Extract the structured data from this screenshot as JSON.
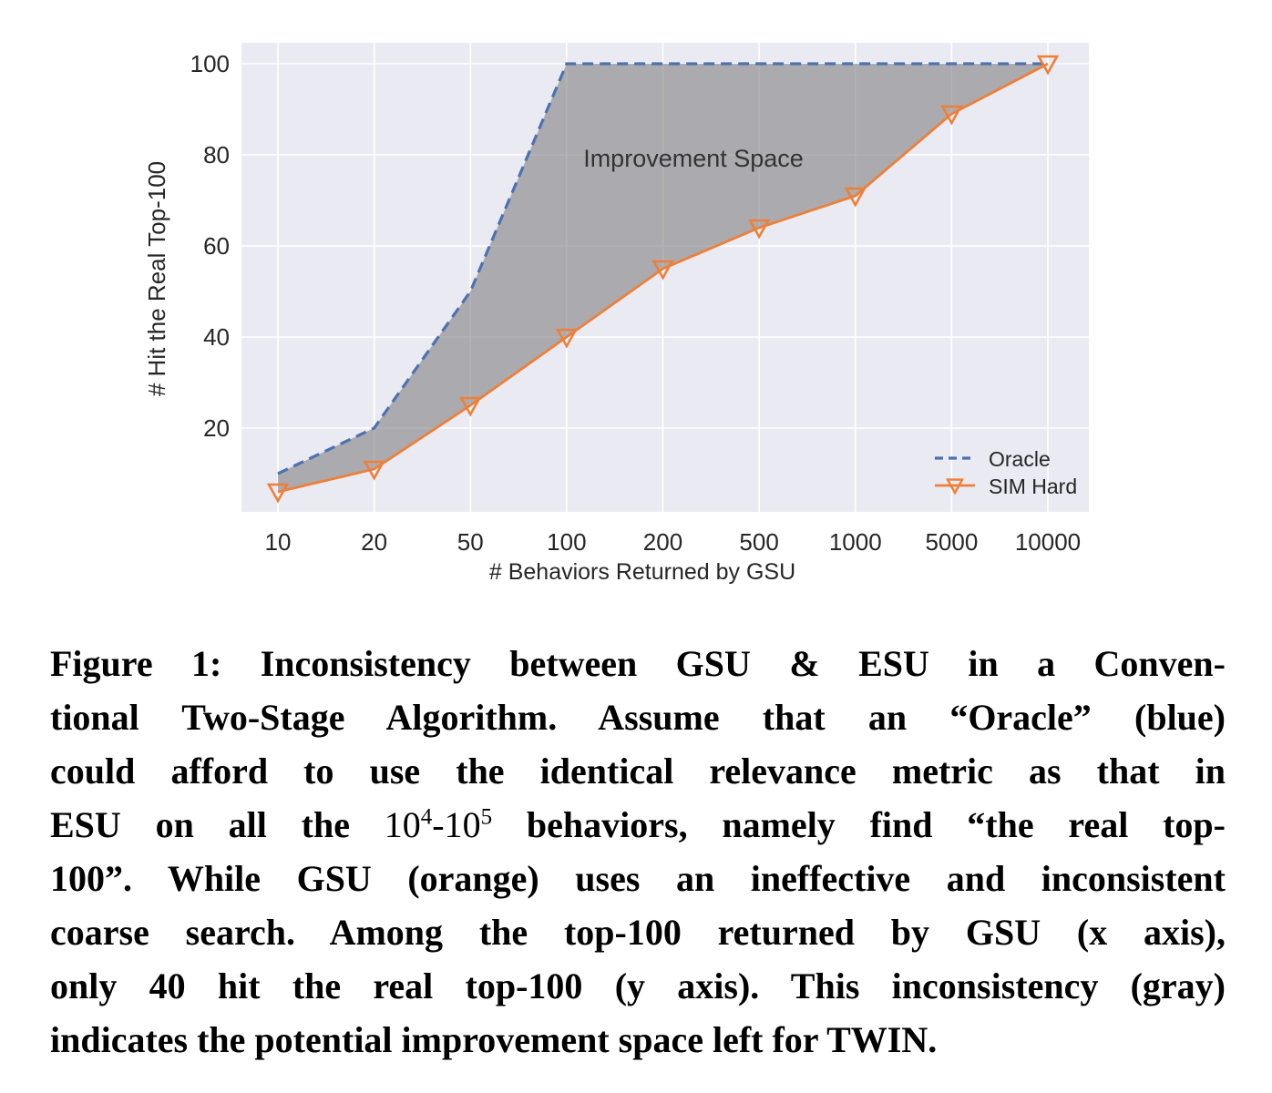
{
  "figure": {
    "plot": {
      "bg_color": "#eaeaf2",
      "grid_color": "#ffffff",
      "annotation": "Improvement Space",
      "annotation_color": "#333333",
      "xlabel": "# Behaviors Returned by GSU",
      "ylabel": "# Hit the Real Top-100",
      "tick_color": "#262626"
    },
    "legend": {
      "items": [
        {
          "label": "Oracle",
          "color": "#4c72b0",
          "style": "dashed",
          "marker": "none"
        },
        {
          "label": "SIM Hard",
          "color": "#ee7f38",
          "style": "solid",
          "marker": "triangle-down"
        }
      ],
      "position": "lower right"
    }
  },
  "chart_data": {
    "type": "line",
    "x_categories": [
      10,
      20,
      50,
      100,
      200,
      500,
      1000,
      5000,
      10000
    ],
    "x_tick_labels": [
      "10",
      "20",
      "50",
      "100",
      "200",
      "500",
      "1000",
      "5000",
      "10000"
    ],
    "series": [
      {
        "name": "Oracle",
        "values": [
          10,
          20,
          50,
          100,
          100,
          100,
          100,
          100,
          100
        ],
        "color": "#4c72b0",
        "line_style": "dashed",
        "marker": "none"
      },
      {
        "name": "SIM Hard",
        "values": [
          6,
          11,
          25,
          40,
          55,
          64,
          71,
          89,
          100
        ],
        "color": "#ee7f38",
        "line_style": "solid",
        "marker": "triangle-down"
      }
    ],
    "fill_between": {
      "between": [
        "Oracle",
        "SIM Hard"
      ],
      "color": "#808082",
      "opacity": 0.6,
      "label": "Improvement Space"
    },
    "title": "",
    "xlabel": "# Behaviors Returned by GSU",
    "ylabel": "# Hit the Real Top-100",
    "yticks": [
      20,
      40,
      60,
      80,
      100
    ],
    "ylim": [
      0,
      105
    ],
    "grid": true,
    "legend_position": "lower right"
  },
  "caption": {
    "lines": [
      "Figure 1: Inconsistency between GSU & ESU in a Conven-",
      "tional Two-Stage Algorithm. Assume that an “Oracle” (blue)",
      "could afford to use the identical relevance metric as that in",
      "",
      "100”. While GSU (orange) uses an ineffective and inconsistent",
      "coarse search. Among the top-100 returned by GSU (x axis),",
      "only 40 hit the real top-100 (y axis). This inconsistency (gray)",
      "indicates the potential improvement space left for TWIN."
    ],
    "math_line": {
      "pre": "ESU on all the ",
      "base1": "10",
      "exp1": "4",
      "mid": "-10",
      "exp2": "5",
      "post": " behaviors, namely find “the real top-"
    }
  }
}
